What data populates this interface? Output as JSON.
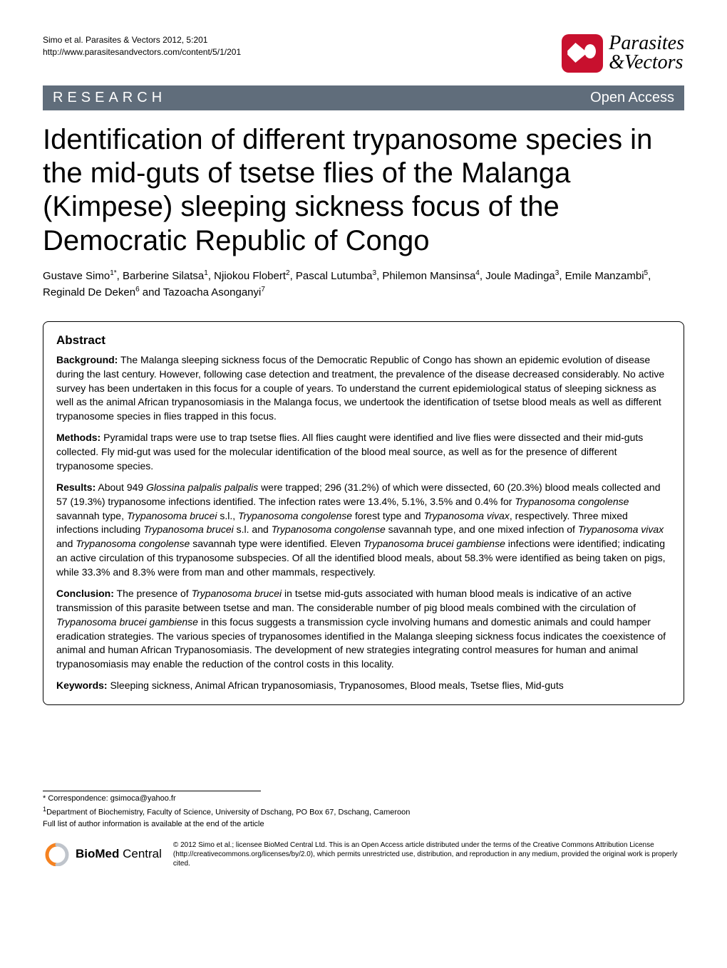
{
  "header": {
    "citation_line1": "Simo et al. Parasites & Vectors 2012, 5:201",
    "citation_line2": "http://www.parasitesandvectors.com/content/5/1/201",
    "journal_line1": "Parasites",
    "journal_line2": "&Vectors"
  },
  "banner": {
    "left": "RESEARCH",
    "right": "Open Access"
  },
  "title": "Identification of different trypanosome species in the mid-guts of tsetse flies of the Malanga (Kimpese) sleeping sickness focus of the Democratic Republic of Congo",
  "authors_html": "Gustave Simo<sup>1*</sup>, Barberine Silatsa<sup>1</sup>, Njiokou Flobert<sup>2</sup>, Pascal Lutumba<sup>3</sup>, Philemon Mansinsa<sup>4</sup>, Joule Madinga<sup>3</sup>, Emile Manzambi<sup>5</sup>, Reginald De Deken<sup>6</sup> and Tazoacha Asonganyi<sup>7</sup>",
  "abstract": {
    "heading": "Abstract",
    "background_label": "Background:",
    "background": " The Malanga sleeping sickness focus of the Democratic Republic of Congo has shown an epidemic evolution of disease during the last century. However, following case detection and treatment, the prevalence of the disease decreased considerably. No active survey has been undertaken in this focus for a couple of years. To understand the current epidemiological status of sleeping sickness as well as the animal African trypanosomiasis in the Malanga focus, we undertook the identification of tsetse blood meals as well as different trypanosome species in flies trapped in this focus.",
    "methods_label": "Methods:",
    "methods": " Pyramidal traps were use to trap tsetse flies. All flies caught were identified and live flies were dissected and their mid-guts collected. Fly mid-gut was used for the molecular identification of the blood meal source, as well as for the presence of different trypanosome species.",
    "results_label": "Results:",
    "results_html": " About 949 <span class=\"ital\">Glossina palpalis palpalis</span> were trapped; 296 (31.2%) of which were dissected, 60 (20.3%) blood meals collected and 57 (19.3%) trypanosome infections identified. The infection rates were 13.4%, 5.1%, 3.5% and 0.4% for <span class=\"ital\">Trypanosoma congolense</span> savannah type, <span class=\"ital\">Trypanosoma brucei</span> s.l., <span class=\"ital\">Trypanosoma congolense</span> forest type and <span class=\"ital\">Trypanosoma vivax</span>, respectively. Three mixed infections including <span class=\"ital\">Trypanosoma brucei</span> s.l. and <span class=\"ital\">Trypanosoma congolense</span> savannah type, and one mixed infection of <span class=\"ital\">Trypanosoma vivax</span> and <span class=\"ital\">Trypanosoma congolense</span> savannah type were identified. Eleven <span class=\"ital\">Trypanosoma brucei gambiense</span> infections were identified; indicating an active circulation of this trypanosome subspecies. Of all the identified blood meals, about 58.3% were identified as being taken on pigs, while 33.3% and 8.3% were from man and other mammals, respectively.",
    "conclusion_label": "Conclusion:",
    "conclusion_html": " The presence of <span class=\"ital\">Trypanosoma brucei</span> in tsetse mid-guts associated with human blood meals is indicative of an active transmission of this parasite between tsetse and man. The considerable number of pig blood meals combined with the circulation of <span class=\"ital\">Trypanosoma brucei gambiense</span> in this focus suggests a transmission cycle involving humans and domestic animals and could hamper eradication strategies. The various species of trypanosomes identified in the Malanga sleeping sickness focus indicates the coexistence of animal and human African Trypanosomiasis. The development of new strategies integrating control measures for human and animal trypanosomiasis may enable the reduction of the control costs in this locality.",
    "keywords_label": "Keywords:",
    "keywords": " Sleeping sickness, Animal African trypanosomiasis, Trypanosomes, Blood meals, Tsetse flies, Mid-guts"
  },
  "footer": {
    "correspondence": "* Correspondence: gsimoca@yahoo.fr",
    "affiliation_html": "<sup>1</sup>Department of Biochemistry, Faculty of Science, University of Dschang, PO Box 67, Dschang, Cameroon",
    "full_list": "Full list of author information is available at the end of the article",
    "bmc_bold": "BioMed",
    "bmc_rest": " Central",
    "license": "© 2012 Simo et al.; licensee BioMed Central Ltd. This is an Open Access article distributed under the terms of the Creative Commons Attribution License (http://creativecommons.org/licenses/by/2.0), which permits unrestricted use, distribution, and reproduction in any medium, provided the original work is properly cited."
  },
  "colors": {
    "banner_bg": "#606d7b",
    "logo_red": "#c8102e",
    "bmc_orange": "#f58220"
  },
  "typography": {
    "title_fontsize": 40,
    "body_fontsize": 14,
    "header_fontsize": 12,
    "footer_fontsize": 11,
    "license_fontsize": 10
  }
}
